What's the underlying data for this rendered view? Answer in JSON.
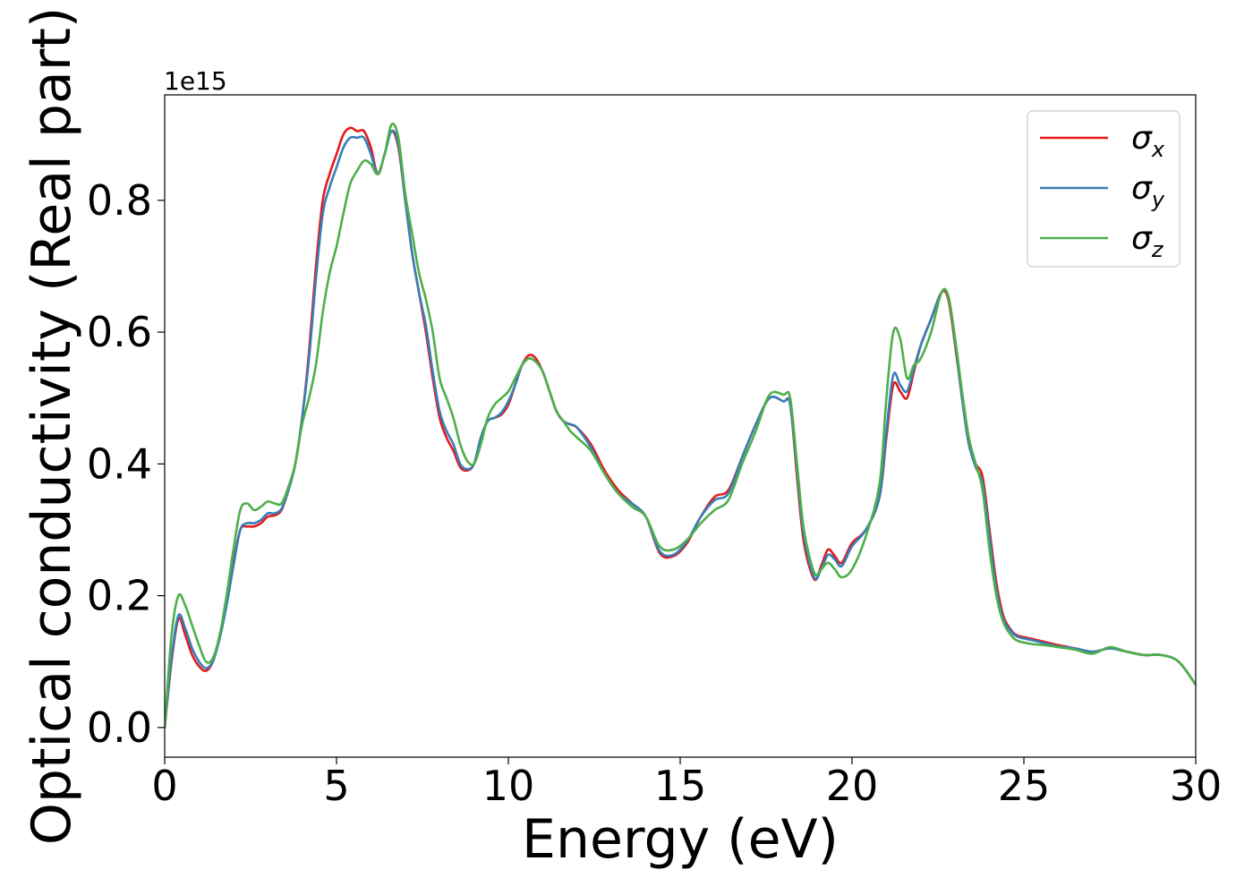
{
  "chart_data": {
    "type": "line",
    "title": "",
    "xlabel": "Energy (eV)",
    "ylabel": "Optical conductivity (Real part)",
    "y_offset_label": "1e15",
    "xlim": [
      0,
      30
    ],
    "ylim": [
      -0.045,
      0.96
    ],
    "xticks": [
      0,
      5,
      10,
      15,
      20,
      25,
      30
    ],
    "xtick_labels": [
      "0",
      "5",
      "10",
      "15",
      "20",
      "25",
      "30"
    ],
    "yticks": [
      0.0,
      0.2,
      0.4,
      0.6,
      0.8
    ],
    "ytick_labels": [
      "0.0",
      "0.2",
      "0.4",
      "0.6",
      "0.8"
    ],
    "grid": false,
    "legend_position": "top-right",
    "series": [
      {
        "name": "σx",
        "symbol": "σ",
        "subscript": "x",
        "color": "#e41a1c",
        "x": [
          0,
          0.2,
          0.4,
          0.6,
          0.8,
          1.0,
          1.2,
          1.4,
          1.6,
          1.8,
          2.0,
          2.2,
          2.4,
          2.6,
          2.8,
          3.0,
          3.2,
          3.4,
          3.6,
          3.8,
          4.0,
          4.2,
          4.4,
          4.6,
          4.8,
          5.0,
          5.2,
          5.4,
          5.6,
          5.8,
          6.0,
          6.2,
          6.4,
          6.6,
          6.8,
          7.0,
          7.2,
          7.4,
          7.6,
          7.8,
          8.0,
          8.2,
          8.4,
          8.6,
          8.8,
          9.0,
          9.2,
          9.4,
          9.6,
          9.8,
          10.0,
          10.2,
          10.4,
          10.6,
          10.8,
          11.0,
          11.2,
          11.4,
          11.6,
          11.8,
          12.0,
          12.4,
          12.8,
          13.2,
          13.6,
          14.0,
          14.4,
          14.8,
          15.2,
          15.6,
          16.0,
          16.4,
          16.8,
          17.2,
          17.6,
          18.0,
          18.2,
          18.4,
          18.6,
          18.9,
          19.1,
          19.3,
          19.5,
          19.7,
          20.0,
          20.4,
          20.8,
          21.0,
          21.2,
          21.4,
          21.6,
          21.8,
          22.0,
          22.3,
          22.6,
          22.8,
          23.0,
          23.2,
          23.4,
          23.6,
          23.8,
          24.0,
          24.2,
          24.4,
          24.6,
          24.8,
          25.2,
          25.6,
          26.0,
          26.5,
          27.0,
          27.5,
          28.0,
          28.5,
          29.0,
          29.5,
          30.0
        ],
        "values": [
          0.0,
          0.1,
          0.165,
          0.14,
          0.11,
          0.093,
          0.086,
          0.1,
          0.14,
          0.19,
          0.25,
          0.3,
          0.305,
          0.305,
          0.31,
          0.32,
          0.322,
          0.33,
          0.36,
          0.4,
          0.47,
          0.57,
          0.7,
          0.8,
          0.84,
          0.87,
          0.9,
          0.91,
          0.905,
          0.905,
          0.88,
          0.84,
          0.87,
          0.905,
          0.88,
          0.8,
          0.72,
          0.66,
          0.6,
          0.53,
          0.47,
          0.44,
          0.42,
          0.395,
          0.39,
          0.4,
          0.44,
          0.465,
          0.47,
          0.475,
          0.49,
          0.52,
          0.55,
          0.565,
          0.56,
          0.54,
          0.51,
          0.48,
          0.465,
          0.46,
          0.455,
          0.43,
          0.39,
          0.36,
          0.34,
          0.32,
          0.265,
          0.26,
          0.28,
          0.32,
          0.35,
          0.36,
          0.41,
          0.46,
          0.5,
          0.495,
          0.49,
          0.38,
          0.28,
          0.225,
          0.245,
          0.27,
          0.26,
          0.25,
          0.28,
          0.3,
          0.35,
          0.44,
          0.52,
          0.51,
          0.5,
          0.54,
          0.58,
          0.62,
          0.66,
          0.65,
          0.58,
          0.5,
          0.43,
          0.4,
          0.38,
          0.3,
          0.22,
          0.17,
          0.15,
          0.14,
          0.135,
          0.13,
          0.125,
          0.12,
          0.115,
          0.12,
          0.115,
          0.11,
          0.11,
          0.1,
          0.065
        ]
      },
      {
        "name": "σy",
        "symbol": "σ",
        "subscript": "y",
        "color": "#377eb8",
        "x": [
          0,
          0.2,
          0.4,
          0.6,
          0.8,
          1.0,
          1.2,
          1.4,
          1.6,
          1.8,
          2.0,
          2.2,
          2.4,
          2.6,
          2.8,
          3.0,
          3.2,
          3.4,
          3.6,
          3.8,
          4.0,
          4.2,
          4.4,
          4.6,
          4.8,
          5.0,
          5.2,
          5.4,
          5.6,
          5.8,
          6.0,
          6.2,
          6.4,
          6.6,
          6.8,
          7.0,
          7.2,
          7.4,
          7.6,
          7.8,
          8.0,
          8.2,
          8.4,
          8.6,
          8.8,
          9.0,
          9.2,
          9.4,
          9.6,
          9.8,
          10.0,
          10.2,
          10.4,
          10.6,
          10.8,
          11.0,
          11.2,
          11.4,
          11.6,
          11.8,
          12.0,
          12.4,
          12.8,
          13.2,
          13.6,
          14.0,
          14.4,
          14.8,
          15.2,
          15.6,
          16.0,
          16.4,
          16.8,
          17.2,
          17.6,
          18.0,
          18.2,
          18.4,
          18.6,
          18.9,
          19.1,
          19.3,
          19.5,
          19.7,
          20.0,
          20.4,
          20.8,
          21.0,
          21.2,
          21.4,
          21.6,
          21.8,
          22.0,
          22.3,
          22.6,
          22.8,
          23.0,
          23.2,
          23.4,
          23.6,
          23.8,
          24.0,
          24.2,
          24.4,
          24.6,
          24.8,
          25.2,
          25.6,
          26.0,
          26.5,
          27.0,
          27.5,
          28.0,
          28.5,
          29.0,
          29.5,
          30.0
        ],
        "values": [
          0.0,
          0.105,
          0.17,
          0.15,
          0.12,
          0.1,
          0.09,
          0.1,
          0.135,
          0.185,
          0.245,
          0.3,
          0.31,
          0.31,
          0.315,
          0.325,
          0.325,
          0.332,
          0.36,
          0.4,
          0.47,
          0.56,
          0.68,
          0.78,
          0.82,
          0.85,
          0.88,
          0.895,
          0.895,
          0.895,
          0.87,
          0.84,
          0.87,
          0.905,
          0.885,
          0.8,
          0.72,
          0.66,
          0.61,
          0.54,
          0.48,
          0.45,
          0.43,
          0.4,
          0.392,
          0.4,
          0.44,
          0.465,
          0.47,
          0.478,
          0.495,
          0.52,
          0.55,
          0.56,
          0.555,
          0.54,
          0.51,
          0.48,
          0.465,
          0.46,
          0.455,
          0.425,
          0.385,
          0.355,
          0.34,
          0.32,
          0.268,
          0.262,
          0.283,
          0.32,
          0.345,
          0.355,
          0.41,
          0.46,
          0.5,
          0.495,
          0.49,
          0.39,
          0.29,
          0.228,
          0.24,
          0.262,
          0.255,
          0.245,
          0.275,
          0.3,
          0.35,
          0.45,
          0.535,
          0.52,
          0.51,
          0.545,
          0.58,
          0.62,
          0.66,
          0.655,
          0.585,
          0.5,
          0.43,
          0.395,
          0.37,
          0.29,
          0.21,
          0.165,
          0.148,
          0.138,
          0.133,
          0.128,
          0.123,
          0.12,
          0.115,
          0.12,
          0.115,
          0.11,
          0.11,
          0.1,
          0.065
        ]
      },
      {
        "name": "σz",
        "symbol": "σ",
        "subscript": "z",
        "color": "#4daf4a",
        "x": [
          0,
          0.2,
          0.4,
          0.6,
          0.8,
          1.0,
          1.2,
          1.4,
          1.6,
          1.8,
          2.0,
          2.2,
          2.4,
          2.6,
          2.8,
          3.0,
          3.2,
          3.4,
          3.6,
          3.8,
          4.0,
          4.2,
          4.4,
          4.6,
          4.8,
          5.0,
          5.2,
          5.4,
          5.6,
          5.8,
          6.0,
          6.2,
          6.4,
          6.6,
          6.8,
          7.0,
          7.2,
          7.4,
          7.6,
          7.8,
          8.0,
          8.2,
          8.4,
          8.6,
          8.8,
          9.0,
          9.2,
          9.4,
          9.6,
          9.8,
          10.0,
          10.2,
          10.4,
          10.6,
          10.8,
          11.0,
          11.2,
          11.4,
          11.6,
          11.8,
          12.0,
          12.4,
          12.8,
          13.2,
          13.6,
          14.0,
          14.4,
          14.8,
          15.2,
          15.6,
          16.0,
          16.4,
          16.8,
          17.2,
          17.6,
          18.0,
          18.2,
          18.4,
          18.6,
          18.9,
          19.1,
          19.3,
          19.5,
          19.7,
          20.0,
          20.4,
          20.8,
          21.0,
          21.2,
          21.4,
          21.6,
          21.8,
          22.0,
          22.3,
          22.6,
          22.8,
          23.0,
          23.2,
          23.4,
          23.6,
          23.8,
          24.0,
          24.2,
          24.4,
          24.6,
          24.8,
          25.2,
          25.6,
          26.0,
          26.5,
          27.0,
          27.5,
          28.0,
          28.5,
          29.0,
          29.5,
          30.0
        ],
        "values": [
          0.0,
          0.14,
          0.2,
          0.185,
          0.155,
          0.125,
          0.1,
          0.105,
          0.14,
          0.2,
          0.27,
          0.33,
          0.34,
          0.33,
          0.335,
          0.343,
          0.34,
          0.34,
          0.365,
          0.4,
          0.46,
          0.5,
          0.55,
          0.63,
          0.69,
          0.73,
          0.78,
          0.825,
          0.845,
          0.86,
          0.855,
          0.84,
          0.87,
          0.915,
          0.895,
          0.81,
          0.75,
          0.69,
          0.65,
          0.6,
          0.53,
          0.5,
          0.47,
          0.43,
          0.405,
          0.4,
          0.43,
          0.47,
          0.49,
          0.5,
          0.51,
          0.53,
          0.55,
          0.56,
          0.555,
          0.54,
          0.51,
          0.48,
          0.465,
          0.45,
          0.44,
          0.42,
          0.385,
          0.355,
          0.335,
          0.32,
          0.275,
          0.27,
          0.285,
          0.31,
          0.33,
          0.345,
          0.4,
          0.45,
          0.505,
          0.505,
          0.5,
          0.4,
          0.3,
          0.235,
          0.24,
          0.25,
          0.24,
          0.228,
          0.24,
          0.29,
          0.37,
          0.5,
          0.6,
          0.59,
          0.53,
          0.55,
          0.56,
          0.6,
          0.66,
          0.655,
          0.59,
          0.51,
          0.44,
          0.4,
          0.36,
          0.27,
          0.2,
          0.16,
          0.142,
          0.132,
          0.127,
          0.125,
          0.122,
          0.118,
          0.112,
          0.122,
          0.115,
          0.11,
          0.11,
          0.1,
          0.065
        ]
      }
    ]
  }
}
